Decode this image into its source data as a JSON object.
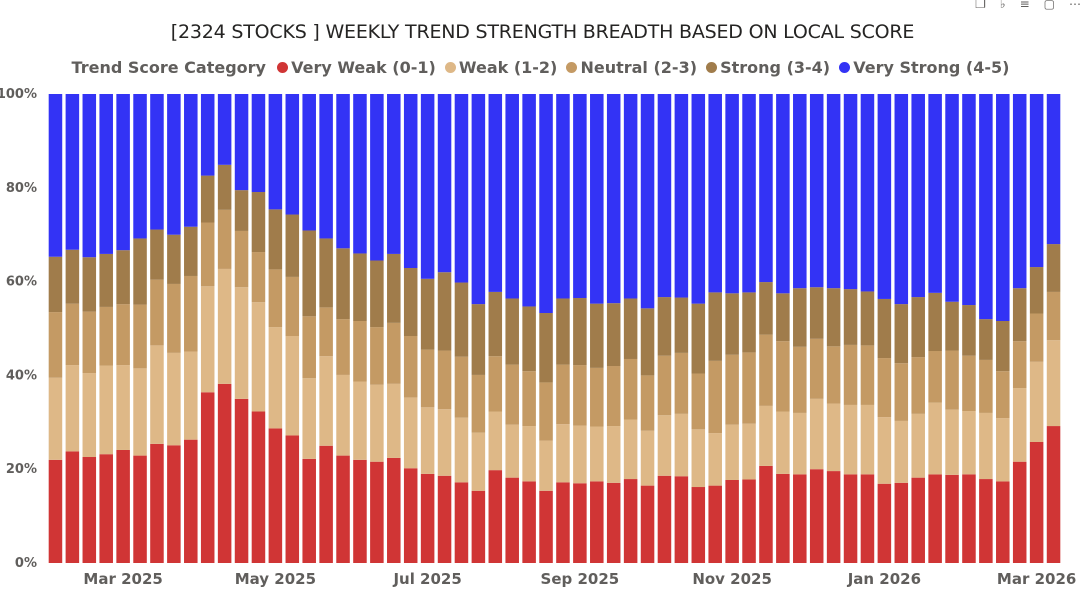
{
  "title": "[2324 STOCKS ] WEEKLY TREND STRENGTH BREADTH BASED ON LOCAL SCORE",
  "toolbar_icons": [
    "copy-icon",
    "bell-icon",
    "filter-icon",
    "expand-icon",
    "more-icon"
  ],
  "legend": {
    "title": "Trend Score Category",
    "items": [
      {
        "label": "Very Weak (0-1)",
        "color": "#d03535"
      },
      {
        "label": "Weak (1-2)",
        "color": "#deb887"
      },
      {
        "label": "Neutral (2-3)",
        "color": "#c49a64"
      },
      {
        "label": "Strong (3-4)",
        "color": "#a07c4b"
      },
      {
        "label": "Very Strong (4-5)",
        "color": "#3333f5"
      }
    ]
  },
  "chart_data": {
    "type": "bar",
    "stacked": "100%",
    "ylim": [
      0,
      100
    ],
    "y_ticks": [
      "0%",
      "20%",
      "40%",
      "60%",
      "80%",
      "100%"
    ],
    "x_ticks": [
      {
        "label": "Mar 2025",
        "index": 4
      },
      {
        "label": "May 2025",
        "index": 13
      },
      {
        "label": "Jul 2025",
        "index": 22
      },
      {
        "label": "Sep 2025",
        "index": 31
      },
      {
        "label": "Nov 2025",
        "index": 40
      },
      {
        "label": "Jan 2026",
        "index": 49
      },
      {
        "label": "Mar 2026",
        "index": 58
      }
    ],
    "series": [
      {
        "name": "Very Weak (0-1)",
        "color": "#d03535",
        "values": [
          22.0,
          23.8,
          22.6,
          23.2,
          24.1,
          22.9,
          25.4,
          25.1,
          26.3,
          36.4,
          38.2,
          35.0,
          32.3,
          28.7,
          27.2,
          22.2,
          25.0,
          22.9,
          22.0,
          21.6,
          22.4,
          20.2,
          19.0,
          18.6,
          17.2,
          15.4,
          19.8,
          18.2,
          17.4,
          15.4,
          17.2,
          17.0,
          17.4,
          17.1,
          17.9,
          16.5,
          18.6,
          18.5,
          16.2,
          16.5,
          17.7,
          17.8,
          20.7,
          19.0,
          18.9,
          20.0,
          19.6,
          18.9,
          18.9,
          16.9,
          17.1,
          18.2,
          18.9,
          18.8,
          18.9,
          17.9,
          17.4,
          21.6,
          25.8,
          29.2
        ]
      },
      {
        "name": "Weak (1-2)",
        "color": "#deb887",
        "values": [
          17.5,
          18.4,
          17.9,
          18.9,
          18.1,
          18.6,
          21.0,
          19.7,
          18.8,
          22.6,
          24.5,
          23.8,
          23.3,
          21.6,
          21.2,
          17.2,
          19.1,
          17.2,
          16.7,
          16.4,
          15.8,
          15.1,
          14.2,
          14.2,
          13.8,
          12.4,
          12.5,
          11.3,
          11.8,
          10.7,
          12.4,
          12.3,
          11.7,
          12.1,
          12.7,
          11.7,
          12.9,
          13.3,
          12.3,
          11.2,
          11.8,
          11.9,
          12.8,
          13.3,
          13.1,
          15.0,
          14.4,
          14.8,
          14.8,
          14.2,
          13.2,
          13.6,
          15.3,
          13.9,
          13.5,
          14.1,
          13.5,
          15.7,
          17.1,
          18.3
        ]
      },
      {
        "name": "Neutral (2-3)",
        "color": "#c49a64",
        "values": [
          14.0,
          13.1,
          13.1,
          12.5,
          13.0,
          13.6,
          14.0,
          14.7,
          16.1,
          13.6,
          12.6,
          12.0,
          10.7,
          12.3,
          12.6,
          13.2,
          10.4,
          11.9,
          12.9,
          12.3,
          13.0,
          13.1,
          12.3,
          12.5,
          13.0,
          12.3,
          11.8,
          12.8,
          11.7,
          12.4,
          12.7,
          12.9,
          12.5,
          12.8,
          12.9,
          11.8,
          12.7,
          13.0,
          11.9,
          15.4,
          14.9,
          15.2,
          15.2,
          15.0,
          14.1,
          12.8,
          12.2,
          12.8,
          12.7,
          12.6,
          12.3,
          12.1,
          11.0,
          12.6,
          11.8,
          11.3,
          10.0,
          10.0,
          10.3,
          10.3
        ]
      },
      {
        "name": "Strong (3-4)",
        "color": "#a07c4b",
        "values": [
          11.8,
          11.5,
          11.6,
          11.3,
          11.5,
          14.1,
          10.7,
          10.5,
          10.5,
          10.0,
          9.6,
          8.7,
          12.8,
          12.8,
          13.3,
          18.3,
          14.7,
          15.1,
          14.4,
          14.2,
          14.7,
          14.5,
          15.1,
          16.7,
          15.8,
          15.1,
          13.7,
          14.1,
          13.8,
          14.8,
          14.1,
          14.3,
          13.7,
          13.4,
          12.9,
          14.3,
          12.5,
          11.8,
          14.9,
          14.6,
          13.1,
          12.8,
          11.2,
          10.2,
          12.5,
          11.0,
          12.4,
          11.9,
          11.5,
          12.6,
          12.6,
          12.8,
          12.4,
          10.4,
          10.8,
          8.7,
          10.7,
          11.3,
          9.9,
          10.2
        ]
      },
      {
        "name": "Very Strong (4-5)",
        "color": "#3333f5",
        "values": [
          34.7,
          33.2,
          34.8,
          34.1,
          33.3,
          30.8,
          28.9,
          30.0,
          28.3,
          17.4,
          15.1,
          20.5,
          20.9,
          24.6,
          25.7,
          29.1,
          30.8,
          32.9,
          34.0,
          35.5,
          34.1,
          37.1,
          39.4,
          38.0,
          40.2,
          44.8,
          42.2,
          43.6,
          45.3,
          46.7,
          43.6,
          43.5,
          44.7,
          44.6,
          43.6,
          45.7,
          43.3,
          43.4,
          44.7,
          42.3,
          42.5,
          42.3,
          40.1,
          42.5,
          41.4,
          41.2,
          41.4,
          41.6,
          42.1,
          43.7,
          44.8,
          43.3,
          42.4,
          44.3,
          45.0,
          48.0,
          48.4,
          41.4,
          36.9,
          32.0
        ]
      }
    ]
  }
}
